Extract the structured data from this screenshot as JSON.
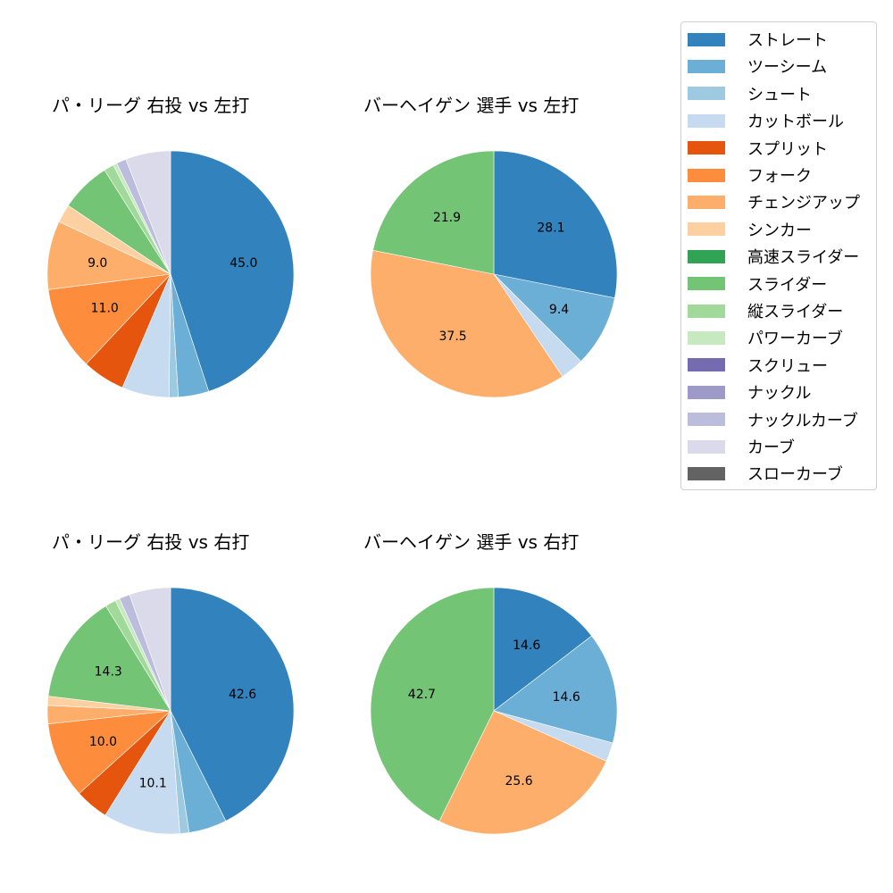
{
  "colors": {
    "ストレート": "#3182bd",
    "ツーシーム": "#6baed6",
    "シュート": "#9ecae1",
    "カットボール": "#c6dbef",
    "スプリット": "#e6550d",
    "フォーク": "#fd8d3c",
    "チェンジアップ": "#fdae6b",
    "シンカー": "#fdd0a2",
    "高速スライダー": "#31a354",
    "スライダー": "#74c476",
    "縦スライダー": "#a1d99b",
    "パワーカーブ": "#c7e9c0",
    "スクリュー": "#756bb1",
    "ナックル": "#9e9ac8",
    "ナックルカーブ": "#bcbddc",
    "カーブ": "#dadaeb",
    "スローカーブ": "#636363"
  },
  "legend": {
    "items": [
      {
        "label": "ストレート",
        "color": "#3182bd"
      },
      {
        "label": "ツーシーム",
        "color": "#6baed6"
      },
      {
        "label": "シュート",
        "color": "#9ecae1"
      },
      {
        "label": "カットボール",
        "color": "#c6dbef"
      },
      {
        "label": "スプリット",
        "color": "#e6550d"
      },
      {
        "label": "フォーク",
        "color": "#fd8d3c"
      },
      {
        "label": "チェンジアップ",
        "color": "#fdae6b"
      },
      {
        "label": "シンカー",
        "color": "#fdd0a2"
      },
      {
        "label": "高速スライダー",
        "color": "#31a354"
      },
      {
        "label": "スライダー",
        "color": "#74c476"
      },
      {
        "label": "縦スライダー",
        "color": "#a1d99b"
      },
      {
        "label": "パワーカーブ",
        "color": "#c7e9c0"
      },
      {
        "label": "スクリュー",
        "color": "#756bb1"
      },
      {
        "label": "ナックル",
        "color": "#9e9ac8"
      },
      {
        "label": "ナックルカーブ",
        "color": "#bcbddc"
      },
      {
        "label": "カーブ",
        "color": "#dadaeb"
      },
      {
        "label": "スローカーブ",
        "color": "#636363"
      }
    ]
  },
  "chart_data": [
    {
      "type": "pie",
      "title": "パ・リーグ 右投 vs 左打",
      "categories": [
        "ストレート",
        "ツーシーム",
        "シュート",
        "カットボール",
        "スプリット",
        "フォーク",
        "チェンジアップ",
        "シンカー",
        "スライダー",
        "縦スライダー",
        "パワーカーブ",
        "ナックルカーブ",
        "カーブ"
      ],
      "values": [
        45.0,
        4.0,
        1.2,
        6.2,
        5.6,
        11.0,
        9.0,
        2.4,
        6.6,
        1.3,
        0.5,
        1.3,
        5.9
      ],
      "labels_shown": [
        "45.0",
        "",
        "",
        "",
        "",
        "11.0",
        "9.0",
        "",
        "",
        "",
        "",
        "",
        ""
      ],
      "start_angle": 90,
      "direction": "clockwise"
    },
    {
      "type": "pie",
      "title": "バーヘイゲン 選手 vs 左打",
      "categories": [
        "ストレート",
        "ツーシーム",
        "カットボール",
        "チェンジアップ",
        "スライダー"
      ],
      "values": [
        28.1,
        9.4,
        3.1,
        37.5,
        21.9
      ],
      "labels_shown": [
        "28.1",
        "9.4",
        "",
        "37.5",
        "21.9"
      ],
      "start_angle": 90,
      "direction": "clockwise"
    },
    {
      "type": "pie",
      "title": "パ・リーグ 右投 vs 右打",
      "categories": [
        "ストレート",
        "ツーシーム",
        "シュート",
        "カットボール",
        "スプリット",
        "フォーク",
        "チェンジアップ",
        "シンカー",
        "スライダー",
        "縦スライダー",
        "パワーカーブ",
        "ナックルカーブ",
        "カーブ"
      ],
      "values": [
        42.6,
        5.0,
        1.2,
        10.1,
        4.4,
        10.0,
        2.4,
        1.2,
        14.3,
        1.4,
        0.6,
        1.4,
        5.4
      ],
      "labels_shown": [
        "42.6",
        "",
        "",
        "10.1",
        "",
        "10.0",
        "",
        "",
        "14.3",
        "",
        "",
        "",
        ""
      ],
      "start_angle": 90,
      "direction": "clockwise"
    },
    {
      "type": "pie",
      "title": "バーヘイゲン 選手 vs 右打",
      "categories": [
        "ストレート",
        "ツーシーム",
        "カットボール",
        "チェンジアップ",
        "スライダー"
      ],
      "values": [
        14.6,
        14.6,
        2.5,
        25.6,
        42.7
      ],
      "labels_shown": [
        "14.6",
        "14.6",
        "",
        "25.6",
        "42.7"
      ],
      "start_angle": 90,
      "direction": "clockwise"
    }
  ],
  "panels": [
    {
      "title": "パ・リーグ 右投 vs 左打"
    },
    {
      "title": "バーヘイゲン 選手 vs 左打"
    },
    {
      "title": "パ・リーグ 右投 vs 右打"
    },
    {
      "title": "バーヘイゲン 選手 vs 右打"
    }
  ]
}
